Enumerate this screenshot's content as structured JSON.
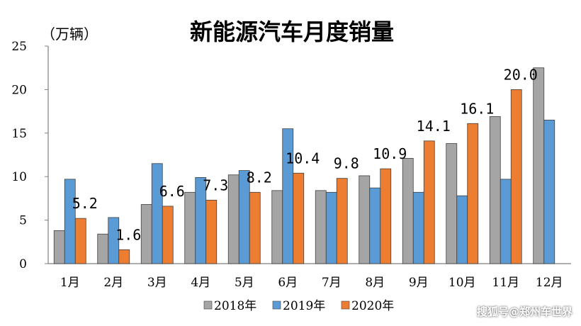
{
  "colors": {
    "2018": "#a5a5a5",
    "2019": "#5b9bd5",
    "2020": "#ed7d31"
  },
  "watermark": "搜狐号@郑州车世界",
  "chart_data": {
    "type": "bar",
    "title": "新能源汽车月度销量",
    "unit": "（万辆）",
    "categories": [
      "1月",
      "2月",
      "3月",
      "4月",
      "5月",
      "6月",
      "7月",
      "8月",
      "9月",
      "10月",
      "11月",
      "12月"
    ],
    "ylim": [
      0,
      25
    ],
    "yticks": [
      0,
      5,
      10,
      15,
      20,
      25
    ],
    "grid": false,
    "legend_position": "bottom",
    "series": [
      {
        "name": "2018年",
        "values": [
          3.8,
          3.4,
          6.8,
          8.2,
          10.2,
          8.4,
          8.4,
          10.1,
          12.1,
          13.8,
          16.9,
          22.5
        ]
      },
      {
        "name": "2019年",
        "values": [
          9.7,
          5.3,
          11.5,
          9.9,
          10.7,
          15.5,
          8.2,
          8.7,
          8.2,
          7.8,
          9.7,
          16.5
        ]
      },
      {
        "name": "2020年",
        "values": [
          5.2,
          1.6,
          6.6,
          7.3,
          8.2,
          10.4,
          9.8,
          10.9,
          14.1,
          16.1,
          20.0,
          null
        ],
        "labels": [
          "5.2",
          "1.6",
          "6.6",
          "7.3",
          "8.2",
          "10.4",
          "9.8",
          "10.9",
          "14.1",
          "16.1",
          "20.0",
          ""
        ]
      }
    ]
  }
}
